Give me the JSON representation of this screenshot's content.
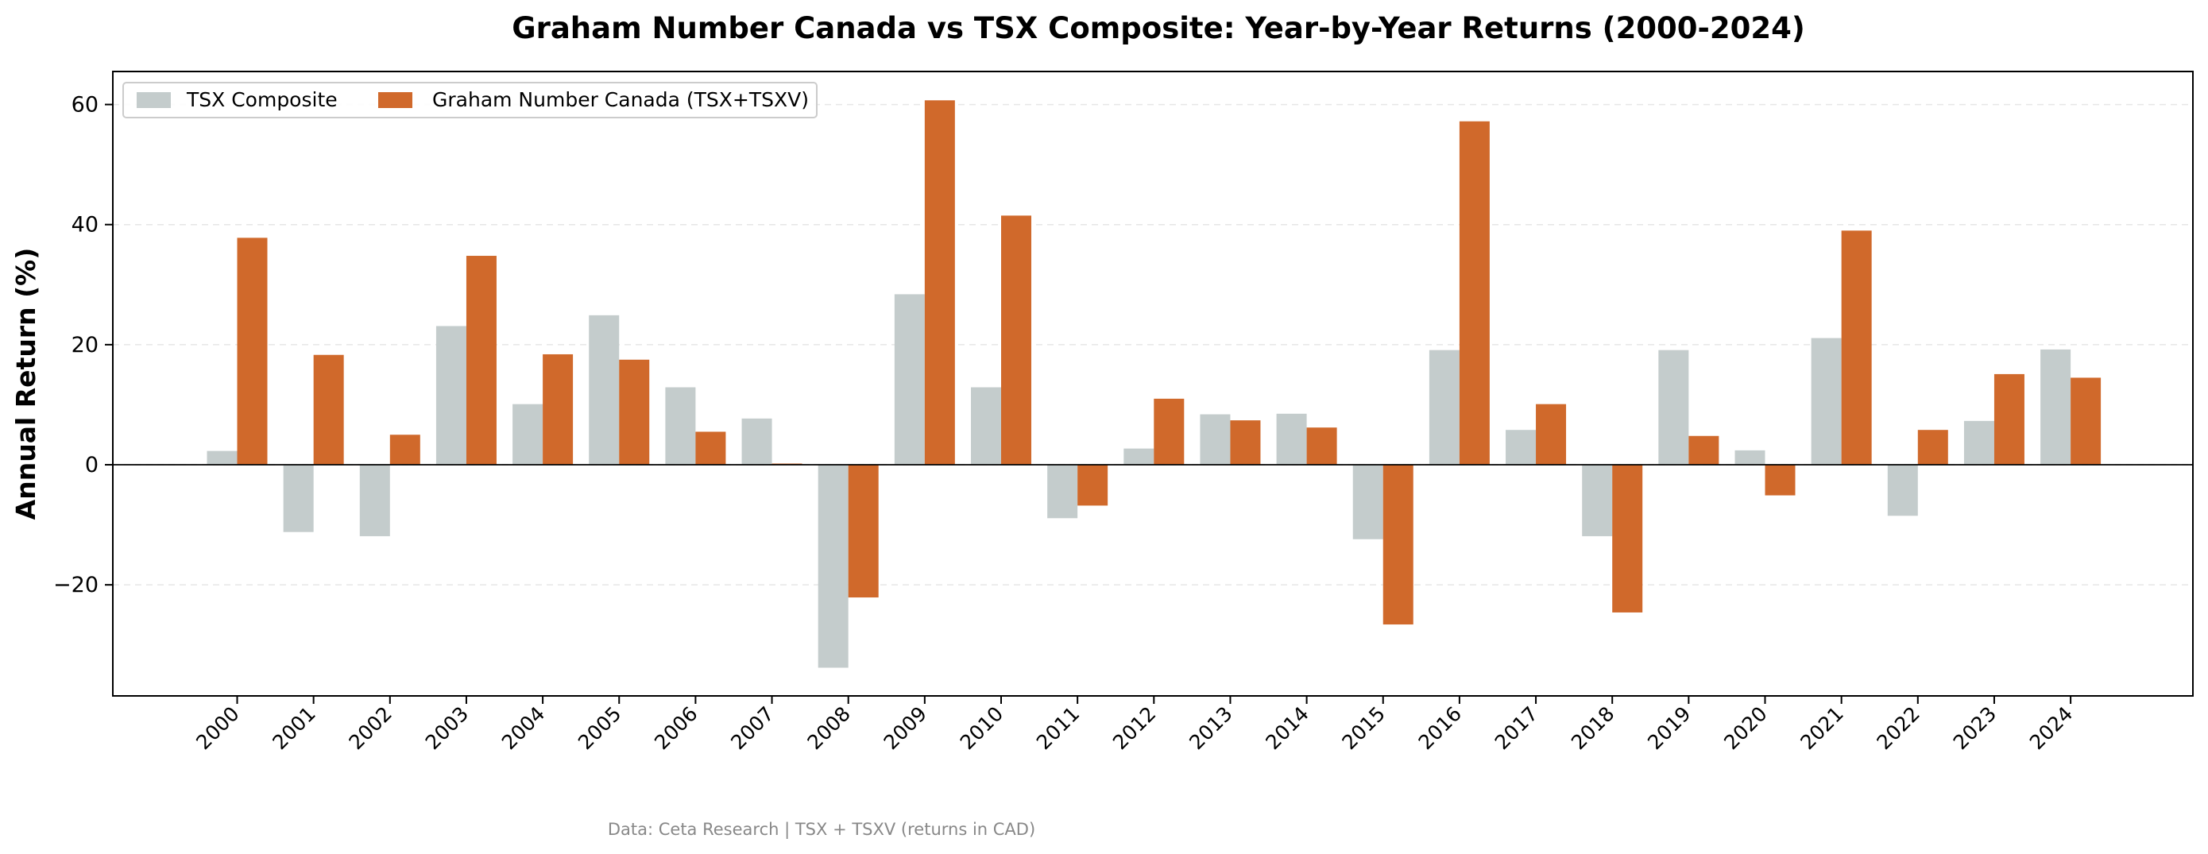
{
  "chart_data": {
    "type": "bar",
    "title": "Graham Number Canada vs TSX Composite: Year-by-Year Returns (2000-2024)",
    "xlabel": "",
    "ylabel": "Annual Return (%)",
    "ylim": [
      -38.5,
      65.5
    ],
    "yticks": [
      -20,
      0,
      20,
      40,
      60
    ],
    "grid": true,
    "legend_position": "top-left",
    "categories": [
      "2000",
      "2001",
      "2002",
      "2003",
      "2004",
      "2005",
      "2006",
      "2007",
      "2008",
      "2009",
      "2010",
      "2011",
      "2012",
      "2013",
      "2014",
      "2015",
      "2016",
      "2017",
      "2018",
      "2019",
      "2020",
      "2021",
      "2022",
      "2023",
      "2024"
    ],
    "series": [
      {
        "name": "TSX Composite",
        "color": "#c4cccc",
        "values": [
          2.3,
          -11.2,
          -11.9,
          23.1,
          10.1,
          24.9,
          12.9,
          7.7,
          -33.8,
          28.4,
          12.9,
          -8.9,
          2.7,
          8.4,
          8.5,
          -12.4,
          19.1,
          5.8,
          -11.9,
          19.1,
          2.4,
          21.1,
          -8.5,
          7.3,
          19.2
        ]
      },
      {
        "name": "Graham Number Canada (TSX+TSXV)",
        "color": "#d0692b",
        "values": [
          37.8,
          18.3,
          5.0,
          34.8,
          18.4,
          17.5,
          5.5,
          0.2,
          -22.1,
          60.7,
          41.5,
          -6.8,
          11.0,
          7.4,
          6.2,
          -26.6,
          57.2,
          10.1,
          -24.6,
          4.8,
          -5.1,
          39.0,
          5.8,
          15.1,
          14.5
        ]
      }
    ],
    "footnote": "Data: Ceta Research | TSX + TSXV (returns in CAD)"
  }
}
